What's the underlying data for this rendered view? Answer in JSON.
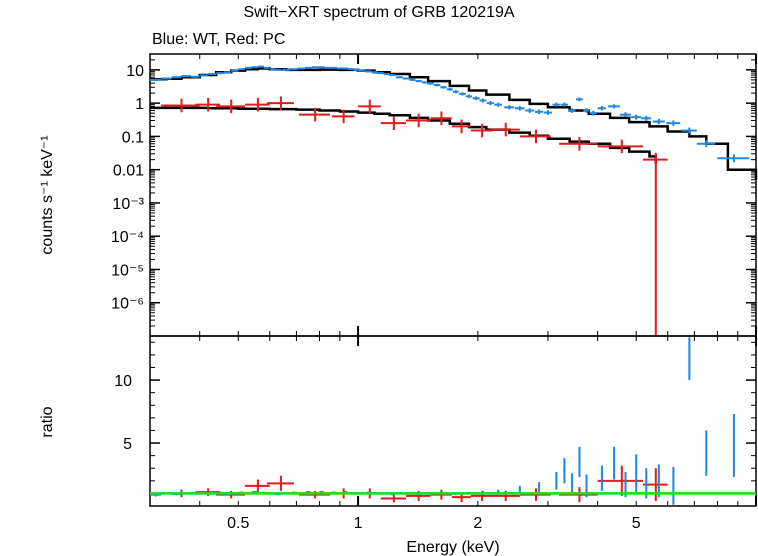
{
  "title": "Swift−XRT spectrum of GRB 120219A",
  "subtitle": "Blue: WT, Red: PC",
  "colors": {
    "wt": "#1e86e6",
    "pc": "#e41a1c",
    "model": "#000000",
    "unity": "#22dd22"
  },
  "chart_data": [
    {
      "type": "scatter",
      "panel": "top",
      "xlabel": "",
      "ylabel": "counts s⁻¹ keV⁻¹",
      "xscale": "log",
      "yscale": "log",
      "xlim": [
        0.3,
        10
      ],
      "ylim": [
        1e-07,
        30
      ],
      "yticks": [
        {
          "v": 10,
          "label": "10"
        },
        {
          "v": 1,
          "label": "1"
        },
        {
          "v": 0.1,
          "label": "0.1"
        },
        {
          "v": 0.01,
          "label": "0.01"
        },
        {
          "v": 0.001,
          "label": "10⁻³"
        },
        {
          "v": 0.0001,
          "label": "10⁻⁴"
        },
        {
          "v": 1e-05,
          "label": "10⁻⁵"
        },
        {
          "v": 1e-06,
          "label": "10⁻⁶"
        }
      ],
      "series": [
        {
          "name": "WT",
          "x": [
            0.31,
            0.33,
            0.35,
            0.37,
            0.39,
            0.41,
            0.43,
            0.45,
            0.47,
            0.49,
            0.51,
            0.53,
            0.55,
            0.57,
            0.59,
            0.61,
            0.63,
            0.66,
            0.69,
            0.72,
            0.75,
            0.78,
            0.81,
            0.84,
            0.87,
            0.9,
            0.93,
            0.96,
            0.99,
            1.02,
            1.06,
            1.1,
            1.14,
            1.18,
            1.22,
            1.27,
            1.32,
            1.37,
            1.42,
            1.47,
            1.52,
            1.58,
            1.64,
            1.7,
            1.76,
            1.83,
            1.9,
            1.98,
            2.06,
            2.15,
            2.25,
            2.4,
            2.55,
            2.7,
            2.85,
            3.0,
            3.15,
            3.3,
            3.45,
            3.6,
            3.75,
            3.9,
            4.1,
            4.4,
            4.7,
            5.0,
            5.3,
            5.7,
            6.2,
            6.8,
            7.5,
            8.8
          ],
          "y": [
            5.0,
            5.5,
            6.0,
            6.5,
            6.2,
            6.8,
            7.5,
            8.0,
            8.5,
            9.5,
            10.5,
            11.5,
            12.0,
            12.5,
            11.5,
            10.5,
            10.0,
            10.0,
            10.5,
            11.0,
            11.5,
            12.0,
            12.0,
            11.5,
            11.5,
            11.0,
            11.0,
            10.5,
            10.0,
            9.5,
            9.0,
            8.5,
            8.0,
            7.5,
            7.0,
            6.0,
            5.5,
            5.0,
            4.6,
            4.2,
            3.9,
            3.5,
            3.0,
            2.6,
            2.2,
            1.9,
            1.6,
            1.4,
            1.2,
            1.0,
            0.9,
            0.75,
            0.7,
            0.6,
            0.55,
            0.52,
            0.9,
            0.9,
            0.6,
            1.3,
            0.6,
            0.5,
            0.7,
            0.8,
            0.45,
            0.38,
            0.35,
            0.28,
            0.25,
            0.15,
            0.06,
            0.022
          ],
          "xerr": [
            0.01,
            0.01,
            0.01,
            0.01,
            0.01,
            0.01,
            0.01,
            0.01,
            0.01,
            0.01,
            0.01,
            0.01,
            0.01,
            0.01,
            0.01,
            0.01,
            0.01,
            0.015,
            0.015,
            0.015,
            0.015,
            0.015,
            0.015,
            0.015,
            0.015,
            0.015,
            0.015,
            0.015,
            0.015,
            0.02,
            0.02,
            0.02,
            0.02,
            0.02,
            0.02,
            0.025,
            0.025,
            0.025,
            0.025,
            0.025,
            0.03,
            0.03,
            0.03,
            0.03,
            0.03,
            0.035,
            0.035,
            0.04,
            0.04,
            0.045,
            0.05,
            0.07,
            0.07,
            0.07,
            0.07,
            0.07,
            0.07,
            0.07,
            0.07,
            0.07,
            0.07,
            0.08,
            0.1,
            0.15,
            0.15,
            0.15,
            0.15,
            0.2,
            0.25,
            0.3,
            0.4,
            0.8
          ]
        },
        {
          "name": "PC",
          "x": [
            0.36,
            0.42,
            0.48,
            0.56,
            0.64,
            0.78,
            0.92,
            1.07,
            1.23,
            1.42,
            1.62,
            1.82,
            2.05,
            2.35,
            2.8,
            3.6,
            4.6,
            5.6
          ],
          "y": [
            0.85,
            0.9,
            0.8,
            0.9,
            1.0,
            0.45,
            0.4,
            0.8,
            0.25,
            0.3,
            0.35,
            0.2,
            0.15,
            0.16,
            0.1,
            0.06,
            0.05,
            0.02
          ],
          "xerr": [
            0.04,
            0.03,
            0.04,
            0.04,
            0.05,
            0.07,
            0.06,
            0.07,
            0.09,
            0.1,
            0.1,
            0.1,
            0.13,
            0.2,
            0.25,
            0.4,
            0.6,
            0.4
          ],
          "yfactor": 1.6
        },
        {
          "name": "WT model",
          "x": [
            0.3,
            0.33,
            0.36,
            0.4,
            0.44,
            0.48,
            0.52,
            0.56,
            0.6,
            0.66,
            0.72,
            0.8,
            0.9,
            1.0,
            1.1,
            1.2,
            1.35,
            1.5,
            1.7,
            1.9,
            2.1,
            2.4,
            2.7,
            3.0,
            3.4,
            3.8,
            4.3,
            4.8,
            5.4,
            6.0,
            6.8,
            7.5,
            8.5,
            10
          ],
          "y": [
            5.2,
            5.4,
            6.0,
            7.0,
            8.5,
            9.5,
            10.5,
            11.0,
            10.5,
            10.0,
            10.0,
            10.2,
            10.0,
            9.5,
            8.5,
            7.5,
            6.0,
            4.6,
            3.3,
            2.4,
            1.8,
            1.25,
            0.95,
            0.75,
            0.6,
            0.48,
            0.36,
            0.27,
            0.2,
            0.14,
            0.1,
            0.06,
            0.01,
            0.005
          ]
        },
        {
          "name": "PC model",
          "x": [
            0.3,
            0.36,
            0.42,
            0.5,
            0.6,
            0.7,
            0.8,
            0.9,
            1.0,
            1.1,
            1.2,
            1.35,
            1.5,
            1.7,
            1.9,
            2.1,
            2.4,
            2.7,
            3.0,
            3.4,
            3.8,
            4.3,
            4.8,
            5.4,
            5.6
          ],
          "y": [
            0.72,
            0.72,
            0.7,
            0.68,
            0.66,
            0.64,
            0.6,
            0.56,
            0.52,
            0.48,
            0.43,
            0.36,
            0.3,
            0.24,
            0.19,
            0.16,
            0.13,
            0.105,
            0.085,
            0.07,
            0.06,
            0.045,
            0.035,
            0.025,
            0.015
          ]
        }
      ]
    },
    {
      "type": "scatter",
      "panel": "bottom",
      "xlabel": "Energy (keV)",
      "ylabel": "ratio",
      "xscale": "log",
      "yscale": "linear",
      "xlim": [
        0.3,
        10
      ],
      "ylim": [
        0,
        13.5
      ],
      "xticks": [
        {
          "v": 0.5,
          "label": "0.5"
        },
        {
          "v": 1,
          "label": "1"
        },
        {
          "v": 2,
          "label": "2"
        },
        {
          "v": 5,
          "label": "5"
        }
      ],
      "yticks": [
        {
          "v": 5,
          "label": "5"
        },
        {
          "v": 10,
          "label": "10"
        }
      ],
      "series": [
        {
          "name": "WT",
          "x": [
            0.31,
            0.35,
            0.39,
            0.43,
            0.47,
            0.51,
            0.55,
            0.59,
            0.63,
            0.69,
            0.75,
            0.81,
            0.87,
            0.93,
            0.99,
            1.06,
            1.14,
            1.22,
            1.32,
            1.42,
            1.52,
            1.64,
            1.76,
            1.9,
            2.06,
            2.25,
            2.55,
            2.85,
            3.15,
            3.3,
            3.45,
            3.6,
            3.75,
            4.1,
            4.4,
            4.7,
            5.0,
            5.3,
            5.7,
            6.2,
            6.8,
            7.5,
            8.8
          ],
          "y": [
            0.9,
            0.95,
            1.0,
            1.0,
            0.95,
            1.05,
            1.1,
            1.0,
            0.95,
            1.05,
            1.1,
            1.1,
            1.05,
            1.1,
            1.0,
            1.05,
            1.0,
            0.95,
            1.0,
            0.95,
            1.0,
            1.0,
            0.95,
            1.0,
            1.05,
            1.1,
            1.3,
            1.5,
            2.0,
            2.8,
            1.8,
            3.5,
            1.6,
            2.2,
            3.4,
            1.7,
            2.6,
            1.8,
            2.0,
            1.6,
            12.5,
            4.2,
            4.8
          ],
          "yerr": [
            0.15,
            0.1,
            0.1,
            0.1,
            0.1,
            0.1,
            0.1,
            0.1,
            0.1,
            0.1,
            0.1,
            0.1,
            0.1,
            0.1,
            0.1,
            0.1,
            0.1,
            0.1,
            0.1,
            0.1,
            0.1,
            0.1,
            0.1,
            0.1,
            0.15,
            0.2,
            0.3,
            0.4,
            0.7,
            1.0,
            0.8,
            1.2,
            0.9,
            1.0,
            1.3,
            1.0,
            1.5,
            1.2,
            1.3,
            1.5,
            2.5,
            1.8,
            2.5
          ]
        },
        {
          "name": "PC",
          "x": [
            0.36,
            0.42,
            0.48,
            0.56,
            0.64,
            0.78,
            0.92,
            1.07,
            1.23,
            1.42,
            1.62,
            1.82,
            2.05,
            2.35,
            2.8,
            3.6,
            4.6,
            5.6
          ],
          "y": [
            1.0,
            1.1,
            0.9,
            1.6,
            1.8,
            0.9,
            1.0,
            1.0,
            0.6,
            0.8,
            0.9,
            0.7,
            0.8,
            0.8,
            0.9,
            0.9,
            2.0,
            1.7
          ],
          "yerr": [
            0.3,
            0.3,
            0.3,
            0.5,
            0.6,
            0.3,
            0.4,
            0.4,
            0.3,
            0.4,
            0.4,
            0.4,
            0.4,
            0.4,
            0.5,
            0.6,
            1.2,
            1.3
          ],
          "xerr": [
            0.04,
            0.03,
            0.04,
            0.04,
            0.05,
            0.07,
            0.06,
            0.07,
            0.09,
            0.1,
            0.1,
            0.1,
            0.13,
            0.2,
            0.25,
            0.4,
            0.6,
            0.4
          ]
        },
        {
          "name": "unity",
          "y": 1.0
        }
      ]
    }
  ]
}
